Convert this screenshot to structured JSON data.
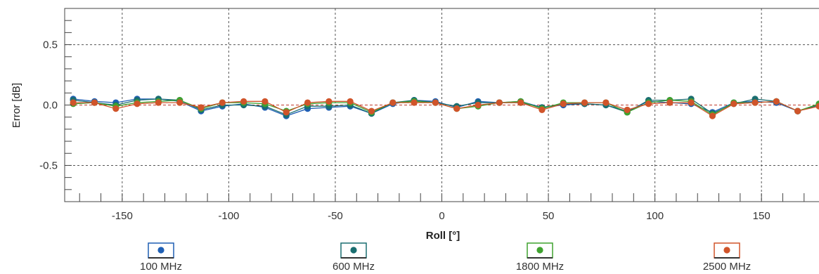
{
  "chart_data": {
    "type": "line",
    "xlabel": "Roll [°]",
    "ylabel": "Error [dB]",
    "xlim": [
      -177,
      177
    ],
    "ylim": [
      -0.8,
      0.8
    ],
    "xticks": [
      -150,
      -100,
      -50,
      0,
      50,
      100,
      150
    ],
    "xtick_labels": [
      "-150",
      "-100",
      "-50",
      "0",
      "50",
      "100",
      "150"
    ],
    "yticks": [
      0.5,
      0.0,
      -0.5
    ],
    "ytick_labels": [
      "0.5",
      "0.0",
      "-0.5"
    ],
    "grid": true,
    "legend_position": "bottom",
    "x": [
      -173,
      -163,
      -153,
      -143,
      -133,
      -123,
      -113,
      -103,
      -93,
      -83,
      -73,
      -63,
      -53,
      -43,
      -33,
      -23,
      -13,
      -3,
      7,
      17,
      27,
      37,
      47,
      57,
      67,
      77,
      87,
      97,
      107,
      117,
      127,
      137,
      147,
      157,
      167,
      177
    ],
    "series": [
      {
        "name": "100 MHz",
        "color": "#1f5fb4",
        "values": [
          0.05,
          0.03,
          0.02,
          0.05,
          0.05,
          0.03,
          -0.05,
          -0.01,
          0.01,
          -0.02,
          -0.09,
          -0.03,
          -0.02,
          -0.01,
          -0.07,
          0.01,
          0.04,
          0.03,
          -0.02,
          0.03,
          0.02,
          0.03,
          -0.02,
          0.0,
          0.01,
          0.0,
          -0.05,
          0.03,
          0.02,
          0.01,
          -0.06,
          0.02,
          0.03,
          0.02,
          -0.05,
          0.0
        ]
      },
      {
        "name": "600 MHz",
        "color": "#1a6e70",
        "values": [
          0.04,
          0.02,
          0.0,
          0.04,
          0.05,
          0.04,
          -0.04,
          0.0,
          0.0,
          -0.01,
          -0.08,
          -0.01,
          -0.01,
          0.0,
          -0.07,
          0.02,
          0.04,
          0.02,
          -0.01,
          0.02,
          0.02,
          0.02,
          -0.02,
          0.01,
          0.01,
          0.0,
          -0.06,
          0.04,
          0.04,
          0.05,
          -0.07,
          0.01,
          0.05,
          0.03,
          -0.05,
          0.0
        ]
      },
      {
        "name": "1800 MHz",
        "color": "#3fa22f",
        "values": [
          0.01,
          0.02,
          -0.01,
          0.02,
          0.03,
          0.04,
          -0.03,
          0.02,
          0.02,
          0.01,
          -0.05,
          0.01,
          0.02,
          0.02,
          -0.06,
          0.02,
          0.03,
          0.02,
          -0.03,
          -0.01,
          0.02,
          0.03,
          -0.03,
          0.02,
          0.02,
          0.02,
          -0.06,
          0.02,
          0.04,
          0.03,
          -0.08,
          0.02,
          0.02,
          0.03,
          -0.05,
          0.01
        ]
      },
      {
        "name": "2500 MHz",
        "color": "#d0542a",
        "values": [
          0.02,
          0.02,
          -0.03,
          0.01,
          0.02,
          0.02,
          -0.02,
          0.02,
          0.03,
          0.03,
          -0.06,
          0.02,
          0.03,
          0.03,
          -0.05,
          0.02,
          0.02,
          0.02,
          -0.03,
          0.0,
          0.02,
          0.02,
          -0.04,
          0.01,
          0.02,
          0.02,
          -0.04,
          0.01,
          0.02,
          0.02,
          -0.09,
          0.01,
          0.02,
          0.03,
          -0.05,
          -0.01
        ]
      }
    ]
  }
}
